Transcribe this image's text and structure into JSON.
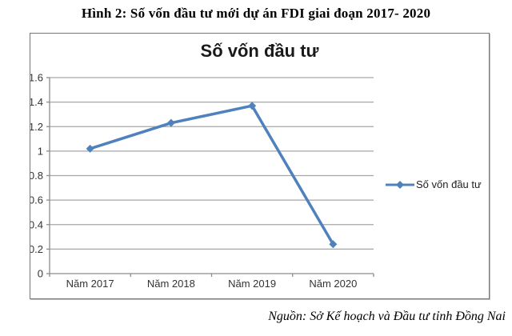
{
  "caption": "Hình 2: Số vốn đầu tư mới dự án FDI giai đoạn 2017- 2020",
  "source": "Nguồn: Sở Kế hoạch và Đầu tư tỉnh Đồng Nai",
  "chart_data": {
    "type": "line",
    "title": "Số vốn đầu tư",
    "categories": [
      "Năm 2017",
      "Năm 2018",
      "Năm 2019",
      "Năm 2020"
    ],
    "series": [
      {
        "name": "Số vốn đầu tư",
        "values": [
          1.02,
          1.23,
          1.37,
          0.24
        ]
      }
    ],
    "ylim": [
      0,
      1.6
    ],
    "ytick_step": 0.2,
    "ytick_labels": [
      "0",
      "0.2",
      "0.4",
      "0.6",
      "0.8",
      "1",
      "1.2",
      "1.4",
      "1.6"
    ],
    "xlabel": "",
    "ylabel": "",
    "grid": true,
    "legend_position": "right",
    "marker": "diamond",
    "colors": {
      "series": "#4F81BD",
      "gridline": "#A6A6A6",
      "axis": "#8C8C8C",
      "tick_label": "#333333"
    }
  }
}
